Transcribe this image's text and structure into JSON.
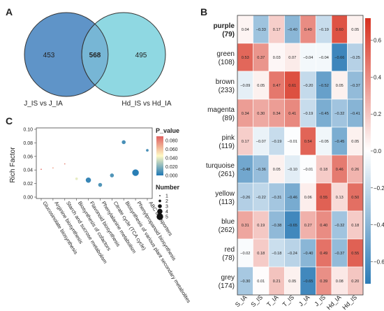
{
  "panel_labels": {
    "a": "A",
    "b": "B",
    "c": "C"
  },
  "chart_data": [
    {
      "type": "venn",
      "panel": "A",
      "sets": [
        {
          "label": "J_IS vs J_IA",
          "only": "453",
          "color": "#5f94c8"
        },
        {
          "label": "Hd_IS vs Hd_IA",
          "only": "495",
          "color": "#8fd8e2"
        }
      ],
      "intersection": "568"
    },
    {
      "type": "heatmap",
      "panel": "B",
      "columns": [
        "S_IA",
        "S_IS",
        "T_IA",
        "T_IS",
        "J_IA",
        "J_IS",
        "Hd_IA",
        "Hd_IS"
      ],
      "rows": [
        {
          "name": "purple",
          "count": "(79)",
          "bold": true,
          "labels": [
            "0.04",
            "−0.33",
            "0.17",
            "−0.40",
            "0.40",
            "−0.19",
            "0.60",
            "0.05"
          ],
          "values": [
            0.04,
            -0.33,
            0.17,
            -0.4,
            0.4,
            -0.19,
            0.6,
            0.05
          ]
        },
        {
          "name": "green",
          "count": "(108)",
          "bold": false,
          "labels": [
            "0.53",
            "0.37",
            "0.03",
            "0.07",
            "−0.04",
            "−0.04",
            "−0.66",
            "−0.25"
          ],
          "values": [
            0.53,
            0.37,
            0.03,
            0.07,
            -0.04,
            -0.04,
            -0.66,
            -0.25
          ]
        },
        {
          "name": "brown",
          "count": "(233)",
          "bold": false,
          "labels": [
            "−0.09",
            "0.05",
            "0.47",
            "0.61",
            "−0.20",
            "−0.52",
            "0.05",
            "−0.37"
          ],
          "values": [
            -0.09,
            0.05,
            0.47,
            0.61,
            -0.2,
            -0.52,
            0.05,
            -0.37
          ]
        },
        {
          "name": "magenta",
          "count": "(89)",
          "bold": false,
          "labels": [
            "0.34",
            "0.30",
            "0.34",
            "0.41",
            "−0.19",
            "−0.45",
            "−0.32",
            "−0.41"
          ],
          "values": [
            0.34,
            0.3,
            0.34,
            0.41,
            -0.19,
            -0.45,
            -0.32,
            -0.41
          ]
        },
        {
          "name": "pink",
          "count": "(119)",
          "bold": false,
          "labels": [
            "0.17",
            "−0.07",
            "−0.19",
            "−0.01",
            "0.54",
            "−0.05",
            "−0.45",
            "0.05"
          ],
          "values": [
            0.17,
            -0.07,
            -0.19,
            -0.01,
            0.54,
            -0.05,
            -0.45,
            0.05
          ]
        },
        {
          "name": "turquoise",
          "count": "(261)",
          "bold": false,
          "labels": [
            "−0.48",
            "−0.36",
            "0.05",
            "−0.10",
            "−0.01",
            "0.18",
            "0.46",
            "0.26"
          ],
          "values": [
            -0.48,
            -0.36,
            0.05,
            -0.1,
            -0.01,
            0.18,
            0.46,
            0.26
          ]
        },
        {
          "name": "yellow",
          "count": "(113)",
          "bold": false,
          "labels": [
            "−0.26",
            "−0.22",
            "−0.31",
            "−0.46",
            "0.06",
            "0.55",
            "0.13",
            "0.50"
          ],
          "values": [
            -0.26,
            -0.22,
            -0.31,
            -0.46,
            0.06,
            0.55,
            0.13,
            0.5
          ]
        },
        {
          "name": "blue",
          "count": "(262)",
          "bold": false,
          "labels": [
            "0.31",
            "0.19",
            "−0.38",
            "−0.65",
            "0.27",
            "0.40",
            "−0.32",
            "0.18"
          ],
          "values": [
            0.31,
            0.19,
            -0.38,
            -0.65,
            0.27,
            0.4,
            -0.32,
            0.18
          ]
        },
        {
          "name": "red",
          "count": "(78)",
          "bold": false,
          "labels": [
            "−0.02",
            "0.18",
            "−0.18",
            "−0.24",
            "−0.40",
            "0.49",
            "−0.37",
            "0.55"
          ],
          "values": [
            -0.02,
            0.18,
            -0.18,
            -0.24,
            -0.4,
            0.49,
            -0.37,
            0.55
          ]
        },
        {
          "name": "grey",
          "count": "(174)",
          "bold": false,
          "labels": [
            "−0.30",
            "0.01",
            "0.21",
            "0.05",
            "−0.65",
            "0.39",
            "0.08",
            "0.20"
          ],
          "values": [
            -0.3,
            0.01,
            0.21,
            0.05,
            -0.65,
            0.39,
            0.08,
            0.2
          ]
        }
      ],
      "colorbar": {
        "ticks": [
          0.6,
          0.4,
          0.2,
          0.0,
          -0.2,
          -0.4,
          -0.6
        ],
        "tick_labels": [
          "0.6",
          "0.4",
          "0.2",
          "0.0",
          "−0.2",
          "−0.4",
          "−0.6"
        ],
        "range": [
          -0.72,
          0.72
        ],
        "colors": {
          "low": "#2c7bb6",
          "mid": "#ffffff",
          "high": "#d7301f"
        }
      }
    },
    {
      "type": "scatter",
      "panel": "C",
      "ylabel": "Rich Factor",
      "ylim": [
        0,
        0.1
      ],
      "yticks": [
        0.0,
        0.02,
        0.04,
        0.06,
        0.08,
        0.1
      ],
      "ytick_labels": [
        "0.00",
        "0.02",
        "0.04",
        "0.06",
        "0.08",
        "0.10"
      ],
      "categories": [
        "Glucosinolate biosynthesis",
        "Arginine biosynthesis",
        "Starch and sucrose metabolism",
        "Biosynthesis of cofactors",
        "Flavonoid biosynthesis",
        "Phenylalanine metabolism",
        "Citrate cycle (TCA cycle)",
        "Biosynthesis of various plant secondary metabolites",
        "Phenylpropanoid biosynthesis",
        "ABC transporters"
      ],
      "points": [
        {
          "y": 0.041,
          "number": 1,
          "p_value": 0.085
        },
        {
          "y": 0.043,
          "number": 1,
          "p_value": 0.07
        },
        {
          "y": 0.049,
          "number": 1,
          "p_value": 0.078
        },
        {
          "y": 0.027,
          "number": 2,
          "p_value": 0.04
        },
        {
          "y": 0.025,
          "number": 4,
          "p_value": 0.005
        },
        {
          "y": 0.018,
          "number": 3,
          "p_value": 0.01
        },
        {
          "y": 0.032,
          "number": 3,
          "p_value": 0.01
        },
        {
          "y": 0.081,
          "number": 3,
          "p_value": 0.008
        },
        {
          "y": 0.036,
          "number": 5,
          "p_value": 0.002
        },
        {
          "y": 0.069,
          "number": 2,
          "p_value": 0.008
        }
      ],
      "legend_color": {
        "title": "P_value",
        "ticks": [
          0.08,
          0.06,
          0.04,
          0.02,
          0.0
        ],
        "tick_labels": [
          "0.080",
          "0.060",
          "0.040",
          "0.020",
          "0.000"
        ],
        "range": [
          0,
          0.09
        ],
        "colors": {
          "low": "#1f78b4",
          "mid": "#fff9c4",
          "high": "#e06060"
        }
      },
      "legend_size": {
        "title": "Number",
        "values": [
          1,
          2,
          3,
          4,
          5
        ],
        "labels": [
          "1",
          "2",
          "3",
          "4",
          "5"
        ]
      }
    }
  ]
}
